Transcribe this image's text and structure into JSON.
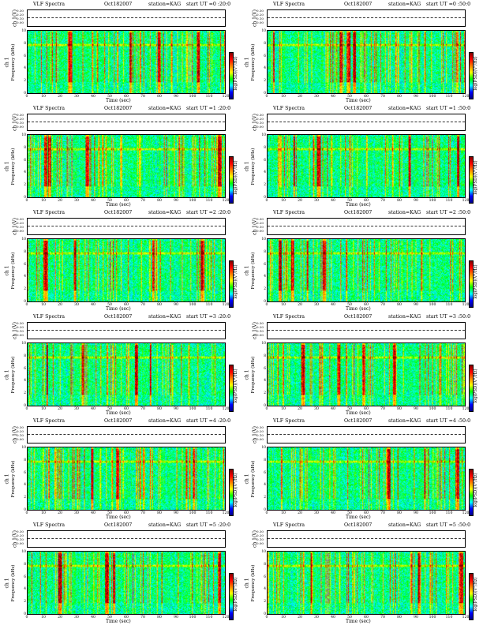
{
  "panel_texts": {
    "tick_y_freq": [
      "0",
      "2",
      "4",
      "6",
      "8",
      "10"
    ],
    "tick_volt": [
      "0.30",
      "0.20",
      "0.10",
      "0.00"
    ],
    "tick_x": [
      "0",
      "10",
      "20",
      "30",
      "40",
      "50",
      "60",
      "70",
      "80",
      "90",
      "100",
      "110",
      "120"
    ]
  },
  "panels": [
    {
      "title": "VLF Spectra",
      "date": "Oct182007",
      "station": "station=KAG",
      "ut": "start  UT =0 :20:0",
      "ylab1": "ch 1",
      "ylab2": "Frequency  (kHz)",
      "vlab": "ch 1(V)",
      "xlab": "Time  (sec)",
      "cblab": "log(PSD)(V²/Hz)"
    },
    {
      "title": "VLF Spectra",
      "date": "Oct182007",
      "station": "station=KAG",
      "ut": "start  UT =0 :50:0",
      "ylab1": "ch 1",
      "ylab2": "Frequency  (kHz)",
      "vlab": "ch 1(V)",
      "xlab": "Time  (sec)",
      "cblab": "log(PSD)(V²/Hz)"
    },
    {
      "title": "VLF Spectra",
      "date": "Oct182007",
      "station": "station=KAG",
      "ut": "start  UT =1 :20:0",
      "ylab1": "ch 1",
      "ylab2": "Frequency  (kHz)",
      "vlab": "ch 1(V)",
      "xlab": "Time  (sec)",
      "cblab": "log(PSD)(V²/Hz)"
    },
    {
      "title": "VLF Spectra",
      "date": "Oct182007",
      "station": "station=KAG",
      "ut": "start  UT =1 :50:0",
      "ylab1": "ch 1",
      "ylab2": "Frequency  (kHz)",
      "vlab": "ch 1(V)",
      "xlab": "Time  (sec)",
      "cblab": "log(PSD)(V²/Hz)"
    },
    {
      "title": "VLF Spectra",
      "date": "Oct182007",
      "station": "station=KAG",
      "ut": "start  UT =2 :20:0",
      "ylab1": "ch 1",
      "ylab2": "Frequency  (kHz)",
      "vlab": "ch 1(V)",
      "xlab": "Time  (sec)",
      "cblab": "log(PSD)(V²/Hz)"
    },
    {
      "title": "VLF Spectra",
      "date": "Oct182007",
      "station": "station=KAG",
      "ut": "start  UT =2 :50:0",
      "ylab1": "ch 1",
      "ylab2": "Frequency  (kHz)",
      "vlab": "ch 1(V)",
      "xlab": "Time  (sec)",
      "cblab": "log(PSD)(V²/Hz)"
    },
    {
      "title": "VLF Spectra",
      "date": "Oct182007",
      "station": "station=KAG",
      "ut": "start  UT =3 :20:0",
      "ylab1": "ch 1",
      "ylab2": "Frequency  (kHz)",
      "vlab": "ch 1(V)",
      "xlab": "Time  (sec)",
      "cblab": "log(PSD)(V²/Hz)"
    },
    {
      "title": "VLF Spectra",
      "date": "Oct182007",
      "station": "station=KAG",
      "ut": "start  UT =3 :50:0",
      "ylab1": "ch 1",
      "ylab2": "Frequency  (kHz)",
      "vlab": "ch 1(V)",
      "xlab": "Time  (sec)",
      "cblab": "log(PSD)(V²/Hz)"
    },
    {
      "title": "VLF Spectra",
      "date": "Oct182007",
      "station": "station=KAG",
      "ut": "start  UT =4 :20:0",
      "ylab1": "ch 1",
      "ylab2": "Frequency  (kHz)",
      "vlab": "ch 1(V)",
      "xlab": "Time  (sec)",
      "cblab": "log(PSD)(V²/Hz)"
    },
    {
      "title": "VLF Spectra",
      "date": "Oct182007",
      "station": "station=KAG",
      "ut": "start  UT =4 :50:0",
      "ylab1": "ch 1",
      "ylab2": "Frequency  (kHz)",
      "vlab": "ch 1(V)",
      "xlab": "Time  (sec)",
      "cblab": "log(PSD)(V²/Hz)"
    },
    {
      "title": "VLF Spectra",
      "date": "Oct182007",
      "station": "station=KAG",
      "ut": "start  UT =5 :20:0",
      "ylab1": "ch 1",
      "ylab2": "Frequency  (kHz)",
      "vlab": "ch 1(V)",
      "xlab": "Time  (sec)",
      "cblab": "log(PSD)(V²/Hz)"
    },
    {
      "title": "VLF Spectra",
      "date": "Oct182007",
      "station": "station=KAG",
      "ut": "start  UT =5 :50:0",
      "ylab1": "ch 1",
      "ylab2": "Frequency  (kHz)",
      "vlab": "ch 1(V)",
      "xlab": "Time  (sec)",
      "cblab": "log(PSD)(V²/Hz)"
    }
  ],
  "chart_data": {
    "type": "heatmap",
    "panel_count": 12,
    "layout": "6 rows x 2 columns",
    "x_range_sec": [
      0,
      120
    ],
    "y_range_khz": [
      0,
      10
    ],
    "volt_range": [
      0.0,
      0.3
    ],
    "colormap": [
      "#000080",
      "#0000ff",
      "#00ffff",
      "#00ff00",
      "#ffff00",
      "#ff8000",
      "#ff0000",
      "#800000"
    ]
  }
}
